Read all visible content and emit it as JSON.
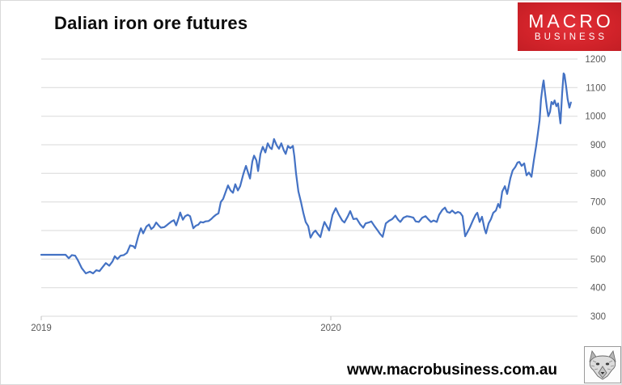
{
  "header": {
    "title": "Dalian iron ore futures"
  },
  "logo": {
    "line1": "MACRO",
    "line2": "BUSINESS",
    "bg_color": "#d2232a",
    "text_color": "#ffffff"
  },
  "footer": {
    "url": "www.macrobusiness.com.au"
  },
  "icons": {
    "bottom_right": "wolf-head-logo"
  },
  "chart_data": {
    "type": "line",
    "title": "Dalian iron ore futures",
    "xlabel": "",
    "ylabel": "",
    "ylim": [
      300,
      1200
    ],
    "y_ticks": [
      1200,
      1100,
      1000,
      900,
      800,
      700,
      600,
      500,
      400,
      300
    ],
    "x_ticks": [
      {
        "label": "2019",
        "t": 0
      },
      {
        "label": "2020",
        "t": 1
      }
    ],
    "x_range_years": [
      0,
      1.83
    ],
    "grid": true,
    "legend": "none",
    "series_name": "Dalian iron ore futures price",
    "series_color": "#4472C4",
    "grid_color": "#d9d9d9",
    "axis_color": "#bfbfbf",
    "tick_label_color": "#595959",
    "points": [
      [
        0,
        515
      ],
      [
        0.056,
        515
      ],
      [
        0.084,
        515
      ],
      [
        0.095,
        503
      ],
      [
        0.106,
        514
      ],
      [
        0.117,
        512
      ],
      [
        0.126,
        497
      ],
      [
        0.14,
        468
      ],
      [
        0.154,
        450
      ],
      [
        0.168,
        456
      ],
      [
        0.179,
        450
      ],
      [
        0.19,
        461
      ],
      [
        0.201,
        458
      ],
      [
        0.212,
        472
      ],
      [
        0.223,
        486
      ],
      [
        0.235,
        477
      ],
      [
        0.246,
        492
      ],
      [
        0.254,
        510
      ],
      [
        0.263,
        500
      ],
      [
        0.274,
        512
      ],
      [
        0.285,
        514
      ],
      [
        0.296,
        522
      ],
      [
        0.307,
        548
      ],
      [
        0.318,
        545
      ],
      [
        0.324,
        538
      ],
      [
        0.335,
        580
      ],
      [
        0.344,
        608
      ],
      [
        0.352,
        590
      ],
      [
        0.363,
        614
      ],
      [
        0.372,
        621
      ],
      [
        0.38,
        605
      ],
      [
        0.388,
        612
      ],
      [
        0.397,
        628
      ],
      [
        0.405,
        618
      ],
      [
        0.413,
        610
      ],
      [
        0.425,
        612
      ],
      [
        0.433,
        618
      ],
      [
        0.441,
        625
      ],
      [
        0.45,
        632
      ],
      [
        0.458,
        636
      ],
      [
        0.466,
        618
      ],
      [
        0.475,
        645
      ],
      [
        0.48,
        663
      ],
      [
        0.489,
        638
      ],
      [
        0.497,
        650
      ],
      [
        0.506,
        655
      ],
      [
        0.514,
        650
      ],
      [
        0.525,
        608
      ],
      [
        0.534,
        617
      ],
      [
        0.542,
        620
      ],
      [
        0.55,
        630
      ],
      [
        0.559,
        628
      ],
      [
        0.567,
        632
      ],
      [
        0.578,
        633
      ],
      [
        0.587,
        640
      ],
      [
        0.595,
        648
      ],
      [
        0.603,
        655
      ],
      [
        0.612,
        660
      ],
      [
        0.62,
        700
      ],
      [
        0.628,
        710
      ],
      [
        0.637,
        735
      ],
      [
        0.645,
        758
      ],
      [
        0.654,
        740
      ],
      [
        0.662,
        732
      ],
      [
        0.67,
        762
      ],
      [
        0.679,
        740
      ],
      [
        0.687,
        755
      ],
      [
        0.698,
        798
      ],
      [
        0.707,
        826
      ],
      [
        0.715,
        800
      ],
      [
        0.721,
        782
      ],
      [
        0.729,
        842
      ],
      [
        0.735,
        862
      ],
      [
        0.743,
        845
      ],
      [
        0.749,
        808
      ],
      [
        0.757,
        868
      ],
      [
        0.765,
        893
      ],
      [
        0.774,
        873
      ],
      [
        0.782,
        905
      ],
      [
        0.79,
        890
      ],
      [
        0.796,
        885
      ],
      [
        0.804,
        920
      ],
      [
        0.813,
        898
      ],
      [
        0.821,
        886
      ],
      [
        0.829,
        905
      ],
      [
        0.838,
        880
      ],
      [
        0.844,
        868
      ],
      [
        0.852,
        896
      ],
      [
        0.86,
        888
      ],
      [
        0.869,
        896
      ],
      [
        0.874,
        860
      ],
      [
        0.88,
        800
      ],
      [
        0.888,
        737
      ],
      [
        0.897,
        700
      ],
      [
        0.905,
        662
      ],
      [
        0.913,
        630
      ],
      [
        0.922,
        615
      ],
      [
        0.93,
        575
      ],
      [
        0.939,
        592
      ],
      [
        0.947,
        600
      ],
      [
        0.955,
        588
      ],
      [
        0.964,
        577
      ],
      [
        0.972,
        610
      ],
      [
        0.978,
        630
      ],
      [
        0.986,
        615
      ],
      [
        0.994,
        600
      ],
      [
        1.006,
        655
      ],
      [
        1.017,
        678
      ],
      [
        1.028,
        655
      ],
      [
        1.039,
        635
      ],
      [
        1.047,
        628
      ],
      [
        1.059,
        650
      ],
      [
        1.067,
        668
      ],
      [
        1.078,
        640
      ],
      [
        1.089,
        642
      ],
      [
        1.101,
        622
      ],
      [
        1.112,
        610
      ],
      [
        1.12,
        625
      ],
      [
        1.131,
        628
      ],
      [
        1.14,
        632
      ],
      [
        1.151,
        615
      ],
      [
        1.162,
        600
      ],
      [
        1.17,
        588
      ],
      [
        1.179,
        578
      ],
      [
        1.19,
        625
      ],
      [
        1.201,
        634
      ],
      [
        1.212,
        640
      ],
      [
        1.223,
        652
      ],
      [
        1.232,
        638
      ],
      [
        1.24,
        630
      ],
      [
        1.251,
        645
      ],
      [
        1.263,
        650
      ],
      [
        1.274,
        648
      ],
      [
        1.285,
        645
      ],
      [
        1.293,
        632
      ],
      [
        1.304,
        630
      ],
      [
        1.316,
        645
      ],
      [
        1.327,
        650
      ],
      [
        1.338,
        638
      ],
      [
        1.346,
        630
      ],
      [
        1.355,
        635
      ],
      [
        1.366,
        630
      ],
      [
        1.374,
        655
      ],
      [
        1.385,
        672
      ],
      [
        1.394,
        680
      ],
      [
        1.402,
        665
      ],
      [
        1.411,
        662
      ],
      [
        1.419,
        670
      ],
      [
        1.43,
        660
      ],
      [
        1.439,
        665
      ],
      [
        1.447,
        662
      ],
      [
        1.455,
        650
      ],
      [
        1.464,
        580
      ],
      [
        1.472,
        595
      ],
      [
        1.48,
        610
      ],
      [
        1.492,
        638
      ],
      [
        1.5,
        655
      ],
      [
        1.506,
        662
      ],
      [
        1.514,
        630
      ],
      [
        1.522,
        648
      ],
      [
        1.531,
        605
      ],
      [
        1.536,
        590
      ],
      [
        1.545,
        625
      ],
      [
        1.553,
        640
      ],
      [
        1.561,
        662
      ],
      [
        1.57,
        670
      ],
      [
        1.578,
        693
      ],
      [
        1.584,
        680
      ],
      [
        1.592,
        736
      ],
      [
        1.601,
        755
      ],
      [
        1.609,
        728
      ],
      [
        1.62,
        783
      ],
      [
        1.628,
        810
      ],
      [
        1.637,
        822
      ],
      [
        1.645,
        838
      ],
      [
        1.651,
        840
      ],
      [
        1.659,
        826
      ],
      [
        1.668,
        835
      ],
      [
        1.676,
        793
      ],
      [
        1.684,
        803
      ],
      [
        1.693,
        788
      ],
      [
        1.701,
        845
      ],
      [
        1.709,
        895
      ],
      [
        1.715,
        940
      ],
      [
        1.721,
        985
      ],
      [
        1.726,
        1060
      ],
      [
        1.732,
        1110
      ],
      [
        1.735,
        1125
      ],
      [
        1.74,
        1080
      ],
      [
        1.746,
        1030
      ],
      [
        1.751,
        1000
      ],
      [
        1.757,
        1015
      ],
      [
        1.762,
        1050
      ],
      [
        1.768,
        1042
      ],
      [
        1.773,
        1055
      ],
      [
        1.779,
        1035
      ],
      [
        1.785,
        1045
      ],
      [
        1.79,
        1000
      ],
      [
        1.793,
        975
      ],
      [
        1.799,
        1080
      ],
      [
        1.804,
        1150
      ],
      [
        1.807,
        1145
      ],
      [
        1.813,
        1100
      ],
      [
        1.818,
        1060
      ],
      [
        1.824,
        1030
      ],
      [
        1.829,
        1048
      ]
    ]
  }
}
